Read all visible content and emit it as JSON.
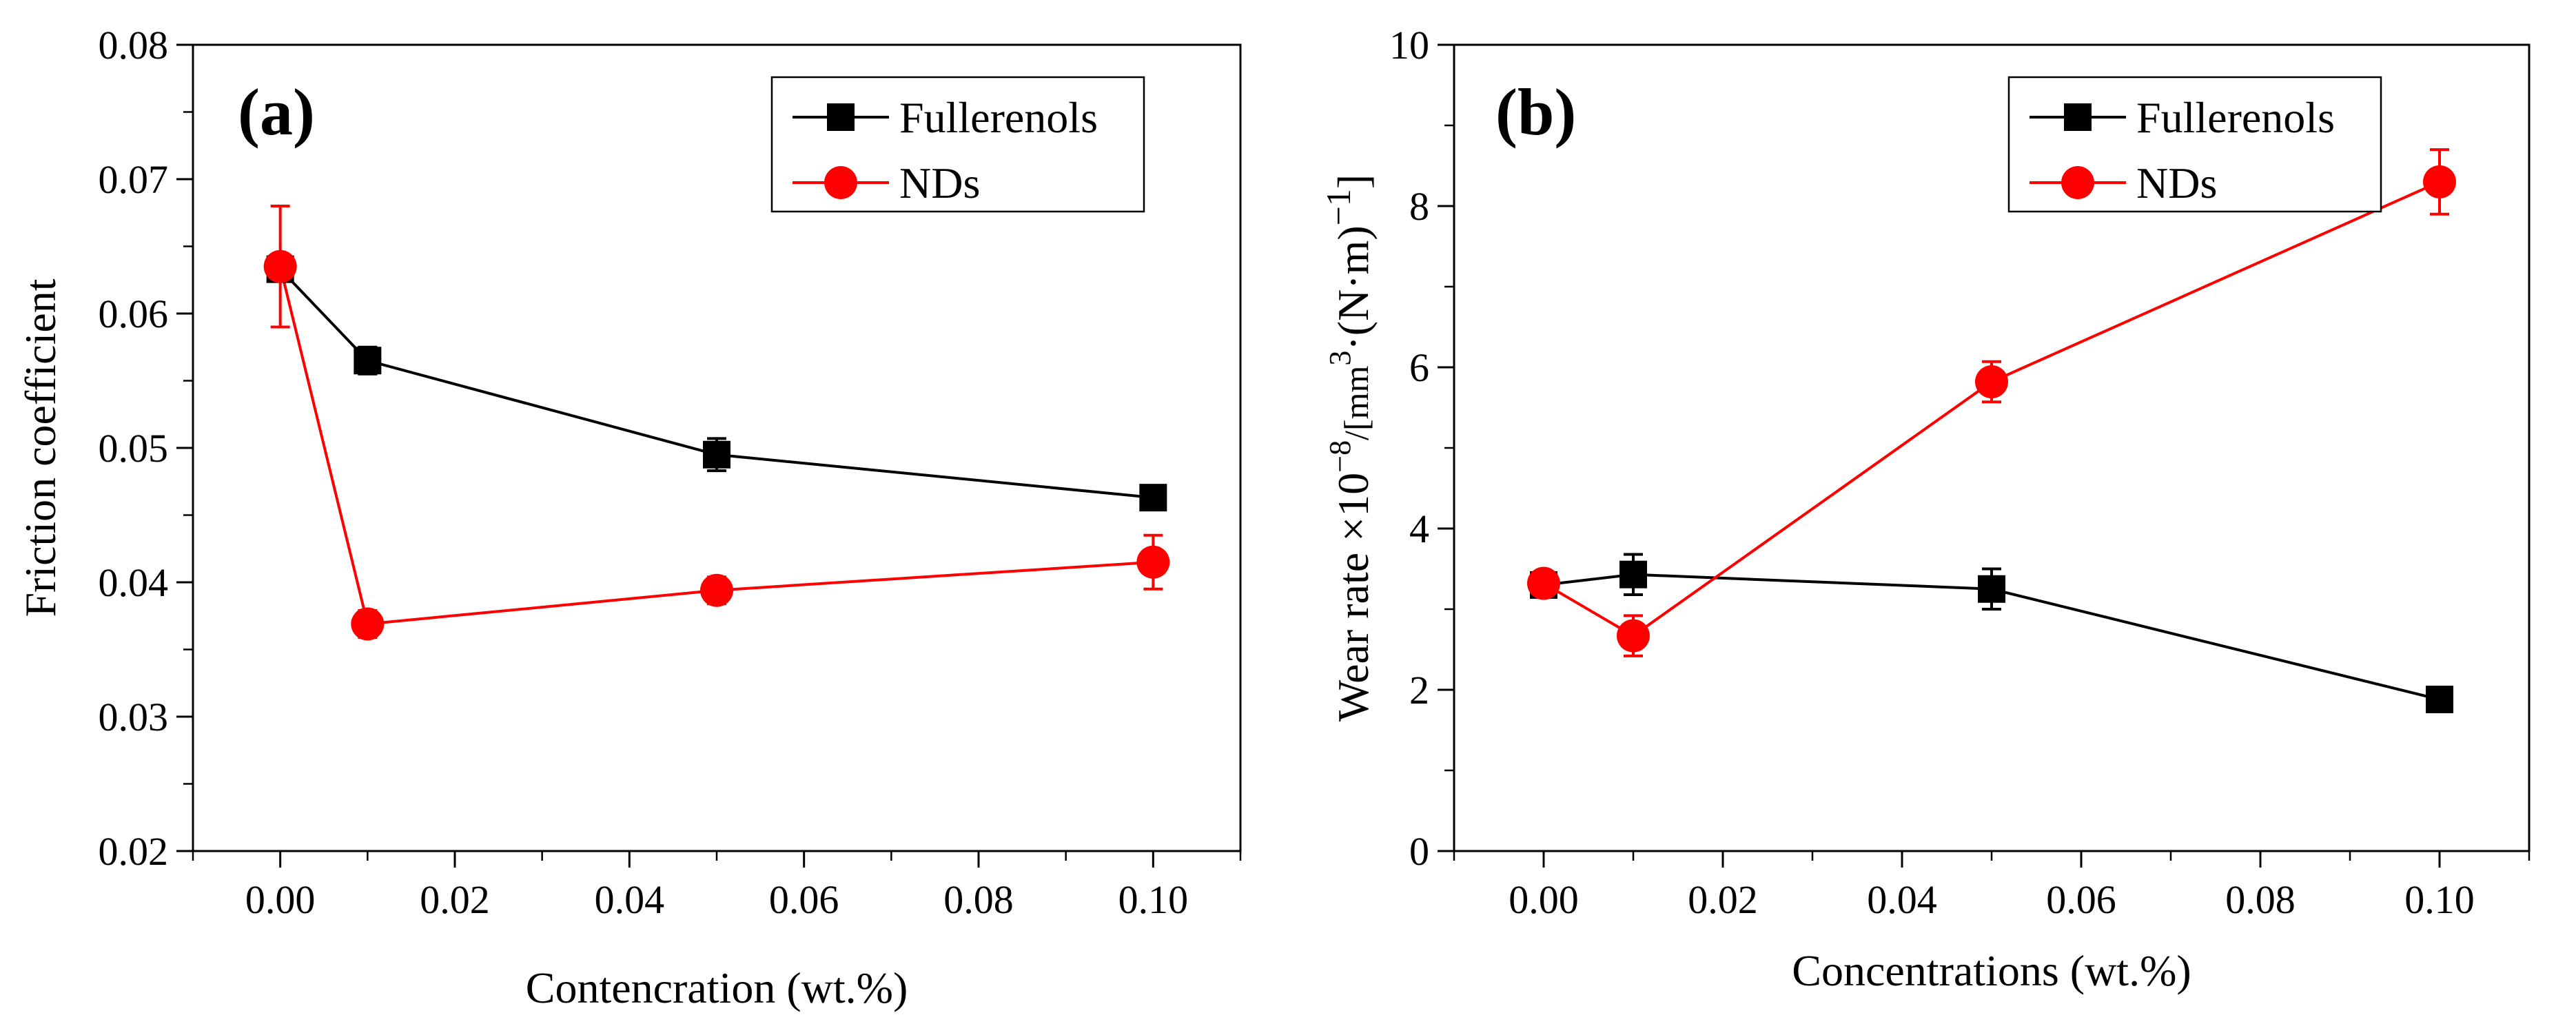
{
  "chart_data": [
    {
      "type": "line",
      "panel_label": "(a)",
      "xlabel": "Contencration (wt.%)",
      "ylabel": "Friction coefficient",
      "xlim": [
        -0.01,
        0.11
      ],
      "ylim": [
        0.02,
        0.08
      ],
      "xticks": [
        0.0,
        0.02,
        0.04,
        0.06,
        0.08,
        0.1
      ],
      "xtick_labels": [
        "0.00",
        "0.02",
        "0.04",
        "0.06",
        "0.08",
        "0.10"
      ],
      "yticks": [
        0.02,
        0.03,
        0.04,
        0.05,
        0.06,
        0.07,
        0.08
      ],
      "ytick_labels": [
        "0.02",
        "0.03",
        "0.04",
        "0.05",
        "0.06",
        "0.07",
        "0.08"
      ],
      "x": [
        0.0,
        0.01,
        0.05,
        0.1
      ],
      "legend_position": "top-right",
      "series": [
        {
          "name": "Fullerenols",
          "color": "#000000",
          "marker": "square",
          "values": [
            0.0633,
            0.0565,
            0.0495,
            0.0463
          ],
          "errors": [
            0.0008,
            0.001,
            0.0012,
            0.0008
          ]
        },
        {
          "name": "NDs",
          "color": "#ff0000",
          "marker": "circle",
          "values": [
            0.0635,
            0.0369,
            0.0394,
            0.0415
          ],
          "errors": [
            0.0045,
            0.001,
            0.001,
            0.002
          ]
        }
      ]
    },
    {
      "type": "line",
      "panel_label": "(b)",
      "xlabel": "Concentrations (wt.%)",
      "ylabel_main": "Wear rate ×10",
      "ylabel_exp": "−8",
      "ylabel_rest": "/[mm",
      "ylabel_exp2": "3",
      "ylabel_rest2": "·(N·m)",
      "ylabel_exp3": "−1",
      "ylabel_end": "]",
      "xlim": [
        -0.01,
        0.11
      ],
      "ylim": [
        0,
        10
      ],
      "xticks": [
        0.0,
        0.02,
        0.04,
        0.06,
        0.08,
        0.1
      ],
      "xtick_labels": [
        "0.00",
        "0.02",
        "0.04",
        "0.06",
        "0.08",
        "0.10"
      ],
      "yticks": [
        0,
        2,
        4,
        6,
        8,
        10
      ],
      "ytick_labels": [
        "0",
        "2",
        "4",
        "6",
        "8",
        "10"
      ],
      "x": [
        0.0,
        0.01,
        0.05,
        0.1
      ],
      "legend_position": "top-right",
      "series": [
        {
          "name": "Fullerenols",
          "color": "#000000",
          "marker": "square",
          "values": [
            3.3,
            3.43,
            3.25,
            1.88
          ],
          "errors": [
            0.1,
            0.25,
            0.25,
            0.08
          ]
        },
        {
          "name": "NDs",
          "color": "#ff0000",
          "marker": "circle",
          "values": [
            3.32,
            2.67,
            5.82,
            8.3
          ],
          "errors": [
            0.12,
            0.25,
            0.25,
            0.4
          ]
        }
      ]
    }
  ]
}
